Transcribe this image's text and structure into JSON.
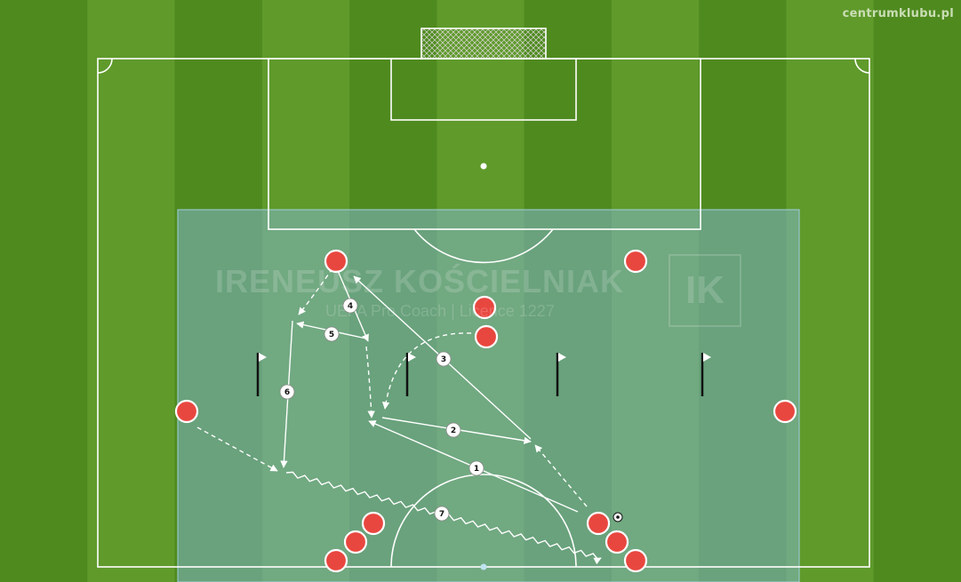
{
  "site_credit": "centrumklubu.pl",
  "watermark": {
    "name": "IRENEUSZ KOŚCIELNIAK",
    "subtitle": "UEFA Pro Coach  |  Licence 1227",
    "logo": "IK"
  },
  "colors": {
    "grass_dark": "#4f8a1f",
    "grass_light": "#5f9a2b",
    "zone": "#7fb6c8",
    "player": "#e8473f",
    "line": "#ffffff"
  },
  "icons": [
    "flag-icon",
    "ball-icon"
  ],
  "pass_labels": [
    "1",
    "2",
    "3",
    "4",
    "5",
    "6",
    "7"
  ]
}
